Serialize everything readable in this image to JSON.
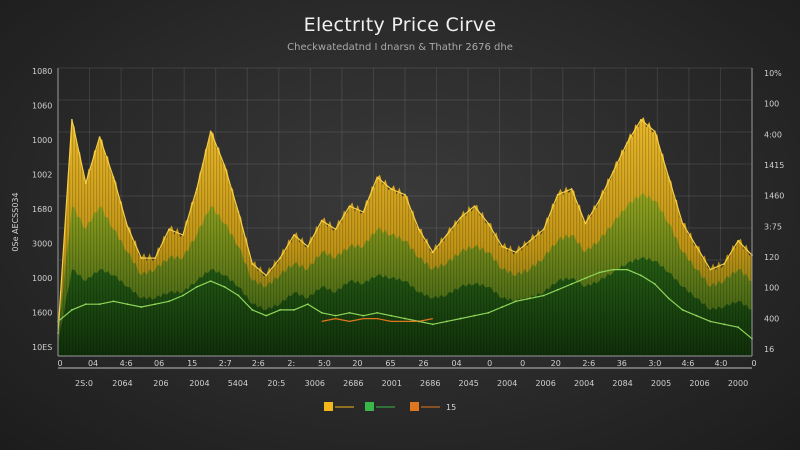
{
  "chart_data": {
    "type": "area",
    "title": "Electrıty Price  Cirve",
    "subtitle": "Checkwatedatnd I dnarsn  & Thathr 2676 dhe",
    "ylabel": "0Se  AECSS034",
    "xlim": [
      0,
      100
    ],
    "ylim": [
      0,
      100
    ],
    "y_left_ticks": [
      "10ES",
      "1600",
      "1000",
      "3000",
      "1680",
      "1002",
      "1000",
      "1060",
      "1080"
    ],
    "y_right_ticks": [
      "16",
      "400",
      "100",
      "120",
      "3:75",
      "1460",
      "1415",
      "4:00",
      "100",
      "10%"
    ],
    "x_ticks_top": [
      "0",
      "04",
      "4:6",
      "06",
      "15",
      "2:7",
      "2:6",
      "2:",
      "5:0",
      "20",
      "65",
      "26",
      "04",
      "0",
      "0",
      "20",
      "2:6",
      "36",
      "3:0",
      "4:6",
      "4:0",
      "0"
    ],
    "x_ticks_bottom": [
      "2S:0",
      "2064",
      "206",
      "2004",
      "5404",
      "20:5",
      "3006",
      "2686",
      "2001",
      "2686",
      "2045",
      "2004",
      "2006",
      "2004",
      "2084",
      "2005",
      "2006",
      "2000"
    ],
    "legend": [
      "",
      "",
      "",
      "15"
    ],
    "colors": {
      "peak": "#f2b51c",
      "mid": "#6f8f1a",
      "base": "#1f4a12",
      "line_low": "#8fd65a",
      "line_orange": "#e0761e",
      "legend_green": "#39b54a"
    },
    "series": [
      {
        "x": [
          0,
          2,
          4,
          6,
          8,
          10,
          12,
          14,
          16,
          18,
          20,
          22,
          24,
          26,
          28,
          30,
          32,
          34,
          36,
          38,
          40,
          42,
          44,
          46,
          48,
          50,
          52,
          54,
          56,
          58,
          60,
          62,
          64,
          66,
          68,
          70,
          72,
          74,
          76,
          78,
          80,
          82,
          84,
          86,
          88,
          90,
          92,
          94,
          96,
          98,
          100
        ],
        "values": [
          8,
          82,
          60,
          76,
          62,
          45,
          34,
          34,
          44,
          42,
          58,
          78,
          66,
          50,
          32,
          28,
          34,
          42,
          38,
          47,
          44,
          52,
          50,
          62,
          58,
          56,
          44,
          36,
          42,
          48,
          52,
          46,
          38,
          36,
          40,
          44,
          56,
          58,
          46,
          54,
          64,
          74,
          82,
          78,
          62,
          46,
          38,
          30,
          32,
          40,
          35
        ]
      },
      {
        "x": [
          0,
          2,
          4,
          6,
          8,
          10,
          12,
          14,
          16,
          18,
          20,
          22,
          24,
          26,
          28,
          30,
          32,
          34,
          36,
          38,
          40,
          42,
          44,
          46,
          48,
          50,
          52,
          54,
          56,
          58,
          60,
          62,
          64,
          66,
          68,
          70,
          72,
          74,
          76,
          78,
          80,
          82,
          84,
          86,
          88,
          90,
          92,
          94,
          96,
          98,
          100
        ],
        "values": [
          6,
          52,
          44,
          52,
          44,
          36,
          28,
          30,
          34,
          34,
          42,
          52,
          46,
          38,
          26,
          24,
          28,
          32,
          30,
          36,
          34,
          38,
          38,
          44,
          42,
          40,
          34,
          30,
          32,
          36,
          38,
          36,
          30,
          28,
          30,
          34,
          40,
          42,
          36,
          40,
          46,
          52,
          56,
          54,
          46,
          36,
          30,
          24,
          26,
          30,
          26
        ]
      },
      {
        "x": [
          0,
          2,
          4,
          6,
          8,
          10,
          12,
          14,
          16,
          18,
          20,
          22,
          24,
          26,
          28,
          30,
          32,
          34,
          36,
          38,
          40,
          42,
          44,
          46,
          48,
          50,
          52,
          54,
          56,
          58,
          60,
          62,
          64,
          66,
          68,
          70,
          72,
          74,
          76,
          78,
          80,
          82,
          84,
          86,
          88,
          90,
          92,
          94,
          96,
          98,
          100
        ],
        "values": [
          4,
          30,
          26,
          30,
          28,
          24,
          20,
          20,
          22,
          22,
          26,
          30,
          28,
          24,
          18,
          16,
          18,
          22,
          20,
          24,
          22,
          26,
          25,
          28,
          27,
          26,
          22,
          20,
          21,
          24,
          25,
          24,
          20,
          19,
          20,
          22,
          26,
          27,
          24,
          26,
          29,
          32,
          34,
          33,
          29,
          24,
          20,
          16,
          17,
          19,
          16
        ]
      },
      {
        "x": [
          0,
          2,
          4,
          6,
          8,
          10,
          12,
          14,
          16,
          18,
          20,
          22,
          24,
          26,
          28,
          30,
          32,
          34,
          36,
          38,
          40,
          42,
          44,
          46,
          48,
          50,
          52,
          54,
          56,
          58,
          60,
          62,
          64,
          66,
          68,
          70,
          72,
          74,
          76,
          78,
          80,
          82,
          84,
          86,
          88,
          90,
          92,
          94,
          96,
          98,
          100
        ],
        "values": [
          12,
          16,
          18,
          18,
          19,
          18,
          17,
          18,
          19,
          21,
          24,
          26,
          24,
          21,
          16,
          14,
          16,
          16,
          18,
          15,
          14,
          15,
          14,
          15,
          14,
          13,
          12,
          11,
          12,
          13,
          14,
          15,
          17,
          19,
          20,
          21,
          23,
          25,
          27,
          29,
          30,
          30,
          28,
          25,
          20,
          16,
          14,
          12,
          11,
          10,
          6
        ]
      },
      {
        "x": [
          38,
          40,
          42,
          44,
          46,
          48,
          50,
          52,
          54
        ],
        "values": [
          12,
          13,
          12,
          13,
          13,
          12,
          12,
          12,
          13
        ]
      }
    ]
  }
}
